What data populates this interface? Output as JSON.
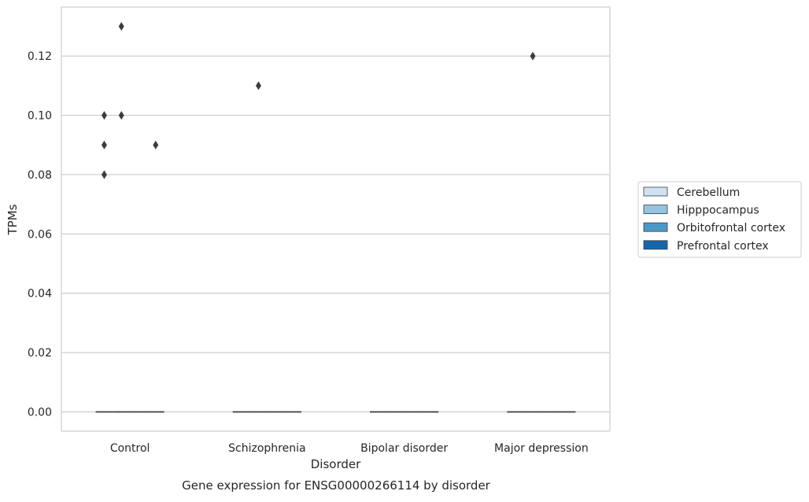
{
  "chart_data": {
    "type": "box",
    "title": "Gene expression for ENSG00000266114 by disorder",
    "xlabel": "Disorder",
    "ylabel": "TPMs",
    "categories": [
      "Control",
      "Schizophrenia",
      "Bipolar disorder",
      "Major depression"
    ],
    "ylim": [
      -0.0065,
      0.1365
    ],
    "yticks": [
      0.0,
      0.02,
      0.04,
      0.06,
      0.08,
      0.1,
      0.12
    ],
    "ytick_labels": [
      "0.00",
      "0.02",
      "0.04",
      "0.06",
      "0.08",
      "0.10",
      "0.12"
    ],
    "grid": "horizontal",
    "legend_position": "right",
    "series": [
      {
        "name": "Cerebellum",
        "color": "#d0e1f2",
        "median": [
          0,
          0,
          0,
          0
        ],
        "outliers": [
          [
            0.08,
            0.09,
            0.1
          ],
          [],
          [],
          []
        ]
      },
      {
        "name": "Hipppocampus",
        "color": "#94c4df",
        "median": [
          0,
          0,
          0,
          0
        ],
        "outliers": [
          [
            0.1,
            0.13
          ],
          [
            0.11
          ],
          [],
          [
            0.12
          ]
        ]
      },
      {
        "name": "Orbitofrontal cortex",
        "color": "#4a98c9",
        "median": [
          0,
          0,
          0,
          0
        ],
        "outliers": [
          [],
          [],
          [],
          []
        ]
      },
      {
        "name": "Prefrontal cortex",
        "color": "#1764ab",
        "median": [
          0,
          0,
          0,
          0
        ],
        "outliers": [
          [
            0.09
          ],
          [],
          [],
          []
        ]
      }
    ]
  }
}
